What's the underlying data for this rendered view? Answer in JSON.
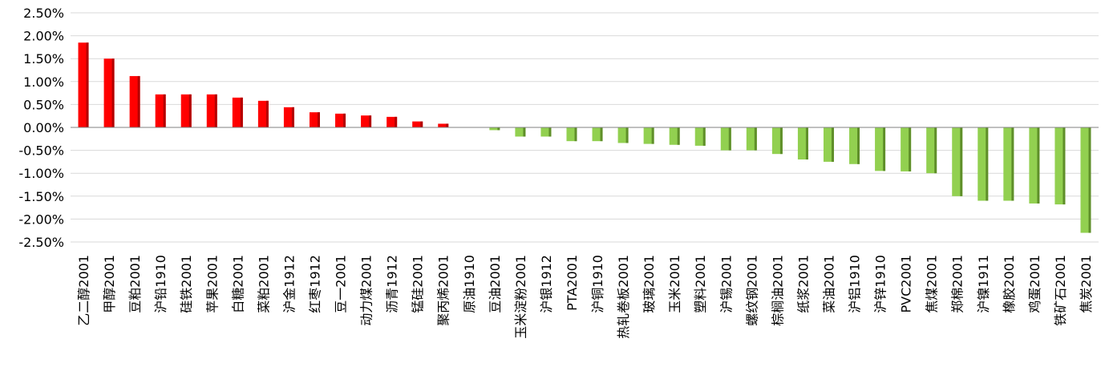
{
  "chart_data": {
    "type": "bar",
    "ylim": [
      -2.5,
      2.5
    ],
    "yticks": [
      "2.50%",
      "2.00%",
      "1.50%",
      "1.00%",
      "0.50%",
      "0.00%",
      "-0.50%",
      "-1.00%",
      "-1.50%",
      "-2.00%",
      "-2.50%"
    ],
    "grid": true,
    "colors": {
      "positive": "#ff0000",
      "positive_dark": "#b30000",
      "negative": "#92d050",
      "negative_dark": "#5f8f2a",
      "grid": "#d9d9d9",
      "axis": "#808080"
    },
    "categories": [
      "乙二醇2001",
      "甲醇2001",
      "豆粕2001",
      "沪铅1910",
      "硅铁2001",
      "苹果2001",
      "白糖2001",
      "菜粕2001",
      "沪金1912",
      "红枣1912",
      "豆一2001",
      "动力煤2001",
      "沥青1912",
      "锰硅2001",
      "聚丙烯2001",
      "原油1910",
      "豆油2001",
      "玉米淀粉2001",
      "沪银1912",
      "PTA2001",
      "沪铜1910",
      "热轧卷板2001",
      "玻璃2001",
      "玉米2001",
      "塑料2001",
      "沪锡2001",
      "螺纹钢2001",
      "棕榈油2001",
      "纸浆2001",
      "菜油2001",
      "沪铝1910",
      "沪锌1910",
      "PVC2001",
      "焦煤2001",
      "郑棉2001",
      "沪镍1911",
      "橡胶2001",
      "鸡蛋2001",
      "铁矿石2001",
      "焦炭2001"
    ],
    "values": [
      1.85,
      1.5,
      1.12,
      0.72,
      0.72,
      0.72,
      0.65,
      0.58,
      0.44,
      0.33,
      0.3,
      0.26,
      0.23,
      0.13,
      0.08,
      0.0,
      -0.06,
      -0.2,
      -0.2,
      -0.3,
      -0.3,
      -0.34,
      -0.36,
      -0.38,
      -0.4,
      -0.5,
      -0.5,
      -0.58,
      -0.7,
      -0.75,
      -0.8,
      -0.95,
      -0.96,
      -1.0,
      -1.5,
      -1.6,
      -1.6,
      -1.66,
      -1.68,
      -2.3
    ]
  }
}
